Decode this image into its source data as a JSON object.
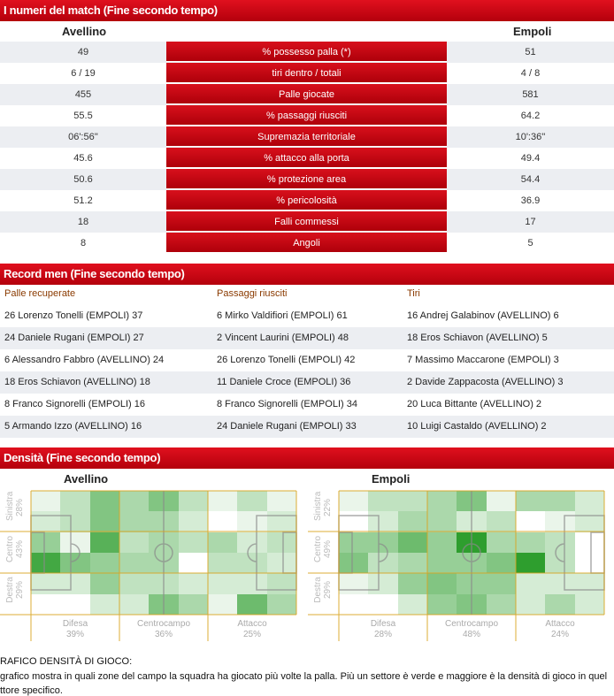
{
  "match_section": {
    "title": "I numeri del match (Fine secondo tempo)",
    "home": "Avellino",
    "away": "Empoli",
    "stats": [
      {
        "home": "49",
        "label": "% possesso palla (*)",
        "away": "51"
      },
      {
        "home": "6 / 19",
        "label": "tiri dentro / totali",
        "away": "4 / 8"
      },
      {
        "home": "455",
        "label": "Palle giocate",
        "away": "581"
      },
      {
        "home": "55.5",
        "label": "% passaggi riusciti",
        "away": "64.2"
      },
      {
        "home": "06':56''",
        "label": "Supremazia territoriale",
        "away": "10':36''"
      },
      {
        "home": "45.6",
        "label": "% attacco alla porta",
        "away": "49.4"
      },
      {
        "home": "50.6",
        "label": "% protezione area",
        "away": "54.4"
      },
      {
        "home": "51.2",
        "label": "% pericolosità",
        "away": "36.9"
      },
      {
        "home": "18",
        "label": "Falli commessi",
        "away": "17"
      },
      {
        "home": "8",
        "label": "Angoli",
        "away": "5"
      }
    ]
  },
  "record_section": {
    "title": "Record men (Fine secondo tempo)",
    "headers": [
      "Palle recuperate",
      "Passaggi riusciti",
      "Tiri"
    ],
    "rows": [
      [
        "26 Lorenzo Tonelli (EMPOLI) 37",
        "6 Mirko Valdifiori (EMPOLI) 61",
        "16 Andrej Galabinov (AVELLINO) 6"
      ],
      [
        "24 Daniele Rugani (EMPOLI) 27",
        "2 Vincent Laurini (EMPOLI) 48",
        "18 Eros Schiavon (AVELLINO) 5"
      ],
      [
        "6 Alessandro Fabbro (AVELLINO) 24",
        "26 Lorenzo Tonelli (EMPOLI) 42",
        "7 Massimo Maccarone (EMPOLI) 3"
      ],
      [
        "18 Eros Schiavon (AVELLINO) 18",
        "11 Daniele Croce (EMPOLI) 36",
        "2 Davide Zappacosta (AVELLINO) 3"
      ],
      [
        "8 Franco Signorelli (EMPOLI) 16",
        "8 Franco Signorelli (EMPOLI) 34",
        "20 Luca Bittante (AVELLINO) 2"
      ],
      [
        "5 Armando Izzo (AVELLINO) 16",
        "24 Daniele Rugani (EMPOLI) 33",
        "10 Luigi Castaldo (AVELLINO) 2"
      ]
    ]
  },
  "density_section": {
    "title": "Densità (Fine secondo tempo)",
    "teams": [
      {
        "name": "Avellino",
        "rows": [
          {
            "label": "Sinistra",
            "pct": "28%"
          },
          {
            "label": "Centro",
            "pct": "43%"
          },
          {
            "label": "Destra",
            "pct": "29%"
          }
        ],
        "cols": [
          {
            "label": "Difesa",
            "pct": "39%"
          },
          {
            "label": "Centrocampo",
            "pct": "36%"
          },
          {
            "label": "Attacco",
            "pct": "25%"
          }
        ],
        "density": [
          [
            0.5,
            1.5,
            3,
            2,
            3,
            1.5,
            0.5,
            1.5,
            0.5
          ],
          [
            1,
            1.5,
            3,
            2,
            2,
            1,
            0,
            0.5,
            1
          ],
          [
            2.5,
            0.5,
            4,
            1.5,
            2,
            1.5,
            2,
            1,
            1.5
          ],
          [
            4.5,
            3,
            2.5,
            2,
            2,
            0,
            1.5,
            1.5,
            1
          ],
          [
            1,
            1,
            2.5,
            1.5,
            1.5,
            1,
            1,
            1,
            1.5
          ],
          [
            0,
            0,
            1,
            1,
            3,
            2,
            0.5,
            3.5,
            2
          ]
        ]
      },
      {
        "name": "Empoli",
        "rows": [
          {
            "label": "Sinistra",
            "pct": "22%"
          },
          {
            "label": "Centro",
            "pct": "49%"
          },
          {
            "label": "Destra",
            "pct": "29%"
          }
        ],
        "cols": [
          {
            "label": "Difesa",
            "pct": "28%"
          },
          {
            "label": "Centrocampo",
            "pct": "48%"
          },
          {
            "label": "Attacco",
            "pct": "24%"
          }
        ],
        "density": [
          [
            0.5,
            1.5,
            1.5,
            2,
            3,
            0.5,
            2,
            2,
            1
          ],
          [
            0,
            1,
            2,
            2,
            1,
            1.5,
            0,
            0.5,
            1
          ],
          [
            2.5,
            2.5,
            3.5,
            2.5,
            5,
            2,
            2,
            1.5,
            0
          ],
          [
            3,
            1.5,
            2,
            2.5,
            2.5,
            3,
            5,
            1.5,
            0
          ],
          [
            0.5,
            1,
            2.5,
            3,
            2.5,
            2.5,
            1,
            1,
            1
          ],
          [
            0,
            0,
            1,
            2.5,
            3,
            2,
            1,
            2,
            1
          ]
        ]
      }
    ],
    "note_title": "RAFICO DENSITÀ DI GIOCO:",
    "note_line1": "grafico mostra in quali zone del campo la squadra ha giocato più volte la palla. Più un settore è verde e maggiore è la densità di gioco in quel",
    "note_line2": "ttore specifico."
  },
  "colors": {
    "accent": "#c8000f",
    "green": "#2e9e2e",
    "zone_line": "#d9a520"
  }
}
